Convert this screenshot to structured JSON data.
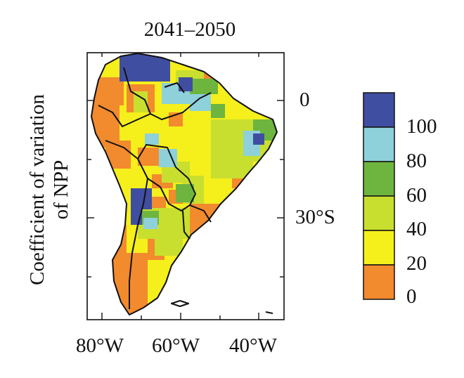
{
  "figure": {
    "title": "2041–2050",
    "ylabel_line1": "Coefficient of variation",
    "ylabel_line2": "of NPP"
  },
  "axes": {
    "lat_labels": [
      "0",
      "30°S"
    ],
    "lon_labels": [
      "80°W",
      "60°W",
      "40°W"
    ]
  },
  "colorbar": {
    "ticks": [
      "100",
      "80",
      "60",
      "40",
      "20",
      "0"
    ],
    "bins": [
      {
        "range": "0-20",
        "color": "#f28a2e"
      },
      {
        "range": "20-40",
        "color": "#f5ef1c"
      },
      {
        "range": "40-60",
        "color": "#c9df2f"
      },
      {
        "range": "60-80",
        "color": "#6db53f"
      },
      {
        "range": "80-100",
        "color": "#8ed1da"
      },
      {
        "range": ">100",
        "color": "#3f4ea0"
      }
    ]
  },
  "colors": {
    "orange": "#f28a2e",
    "yellow": "#f5ef1c",
    "yellowgreen": "#c9df2f",
    "green": "#6db53f",
    "cyan": "#8ed1da",
    "blue": "#3f4ea0",
    "outline": "#111111"
  }
}
